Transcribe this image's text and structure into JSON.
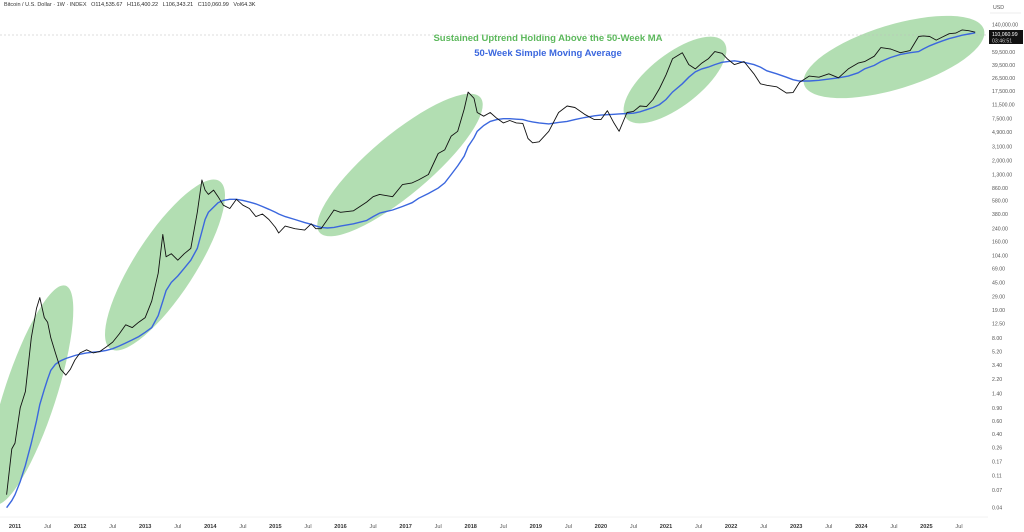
{
  "header": {
    "symbol": "Bitcoin / U.S. Dollar · 1W · INDEX",
    "open_label": "O",
    "open": "114,535.67",
    "high_label": "H",
    "high": "116,400.22",
    "low_label": "L",
    "low": "106,343.21",
    "close_label": "C",
    "close": "110,060.99",
    "vol_label": "Vol",
    "vol": "64.3K"
  },
  "currency": "USD",
  "price_badge": {
    "price": "110,060.99",
    "timer": "03:46:51"
  },
  "chart_data": {
    "type": "line",
    "scale": "log",
    "title": "",
    "annotations": [
      {
        "text": "Sustained Uptrend Holding Above the 50-Week MA",
        "color": "#5cb85c"
      },
      {
        "text": "50-Week Simple Moving Average",
        "color": "#3b67de"
      }
    ],
    "y_ticks": [
      "140,000.00",
      "90,000.00",
      "59,500.00",
      "39,500.00",
      "26,500.00",
      "17,500.00",
      "11,500.00",
      "7,500.00",
      "4,900.00",
      "3,100.00",
      "2,000.00",
      "1,300.00",
      "860.00",
      "580.00",
      "380.00",
      "240.00",
      "160.00",
      "104.00",
      "69.00",
      "45.00",
      "29.00",
      "19.00",
      "12.50",
      "8.00",
      "5.20",
      "3.40",
      "2.20",
      "1.40",
      "0.90",
      "0.60",
      "0.40",
      "0.26",
      "0.17",
      "0.11",
      "0.07",
      "0.04"
    ],
    "x_ticks": [
      "2011",
      "Jul",
      "2012",
      "Jul",
      "2013",
      "Jul",
      "2014",
      "Jul",
      "2015",
      "Jul",
      "2016",
      "Jul",
      "2017",
      "Jul",
      "2018",
      "Jul",
      "2019",
      "Jul",
      "2020",
      "Jul",
      "2021",
      "Jul",
      "2022",
      "Jul",
      "2023",
      "Jul",
      "2024",
      "Jul",
      "2025",
      "Jul"
    ],
    "x_range": [
      2010.8,
      2025.9
    ],
    "y_range": [
      0.035,
      200000
    ],
    "series": [
      {
        "name": "Bitcoin / U.S. Dollar",
        "color": "#111111",
        "x": [
          2010.87,
          2010.95,
          2011.0,
          2011.08,
          2011.16,
          2011.25,
          2011.33,
          2011.38,
          2011.45,
          2011.5,
          2011.55,
          2011.62,
          2011.7,
          2011.78,
          2011.85,
          2011.92,
          2012.0,
          2012.1,
          2012.2,
          2012.3,
          2012.4,
          2012.5,
          2012.6,
          2012.7,
          2012.8,
          2012.9,
          2013.0,
          2013.1,
          2013.2,
          2013.27,
          2013.32,
          2013.4,
          2013.5,
          2013.6,
          2013.7,
          2013.8,
          2013.87,
          2013.92,
          2013.97,
          2014.05,
          2014.12,
          2014.2,
          2014.3,
          2014.4,
          2014.5,
          2014.6,
          2014.7,
          2014.8,
          2014.9,
          2015.0,
          2015.05,
          2015.15,
          2015.3,
          2015.45,
          2015.55,
          2015.62,
          2015.7,
          2015.8,
          2015.9,
          2016.0,
          2016.2,
          2016.4,
          2016.5,
          2016.6,
          2016.8,
          2016.95,
          2017.1,
          2017.2,
          2017.35,
          2017.5,
          2017.6,
          2017.7,
          2017.8,
          2017.9,
          2017.96,
          2018.05,
          2018.1,
          2018.2,
          2018.3,
          2018.4,
          2018.5,
          2018.6,
          2018.7,
          2018.8,
          2018.88,
          2018.95,
          2019.05,
          2019.2,
          2019.35,
          2019.48,
          2019.6,
          2019.75,
          2019.9,
          2020.0,
          2020.1,
          2020.2,
          2020.28,
          2020.4,
          2020.5,
          2020.6,
          2020.7,
          2020.8,
          2020.9,
          2021.0,
          2021.1,
          2021.25,
          2021.35,
          2021.45,
          2021.55,
          2021.65,
          2021.75,
          2021.86,
          2021.95,
          2022.05,
          2022.2,
          2022.35,
          2022.45,
          2022.55,
          2022.7,
          2022.85,
          2022.95,
          2023.05,
          2023.2,
          2023.35,
          2023.5,
          2023.65,
          2023.8,
          2023.95,
          2024.05,
          2024.2,
          2024.3,
          2024.45,
          2024.6,
          2024.75,
          2024.88,
          2024.95,
          2025.05,
          2025.15,
          2025.25,
          2025.35,
          2025.45,
          2025.55,
          2025.65,
          2025.75
        ],
        "y": [
          0.06,
          0.25,
          0.3,
          0.9,
          1.5,
          8,
          20,
          28,
          15,
          13,
          8,
          5,
          3,
          2.5,
          3,
          4,
          5,
          5.5,
          5,
          5.2,
          6,
          7,
          9,
          12,
          11,
          13,
          15,
          25,
          60,
          200,
          100,
          110,
          90,
          110,
          130,
          400,
          1100,
          800,
          700,
          800,
          650,
          500,
          450,
          600,
          500,
          450,
          350,
          380,
          320,
          250,
          210,
          260,
          240,
          230,
          280,
          240,
          240,
          320,
          430,
          400,
          420,
          550,
          650,
          700,
          650,
          950,
          1000,
          1100,
          1300,
          2500,
          2800,
          4300,
          5000,
          10000,
          17000,
          14000,
          9000,
          8000,
          9000,
          7500,
          6500,
          7000,
          6500,
          6400,
          4000,
          3500,
          3600,
          5000,
          9000,
          11000,
          10500,
          8500,
          7200,
          7200,
          9500,
          6500,
          5000,
          9000,
          9300,
          11000,
          10800,
          13500,
          19000,
          29000,
          48000,
          58000,
          40000,
          35000,
          42000,
          48000,
          60000,
          57000,
          47000,
          40000,
          44000,
          30000,
          22000,
          21000,
          20000,
          16500,
          16700,
          23000,
          28000,
          27000,
          30000,
          26500,
          35000,
          42000,
          44000,
          52000,
          68000,
          65000,
          58000,
          62000,
          96000,
          98000,
          96000,
          86000,
          95000,
          105000,
          107000,
          118000,
          115000,
          110000
        ],
        "ma50": [
          0.04,
          0.05,
          0.06,
          0.09,
          0.15,
          0.3,
          0.6,
          1.0,
          1.6,
          2.2,
          2.9,
          3.5,
          3.9,
          4.2,
          4.4,
          4.6,
          4.8,
          5.0,
          5.1,
          5.2,
          5.4,
          5.7,
          6.2,
          6.8,
          7.5,
          8.3,
          9.5,
          11,
          16,
          25,
          35,
          45,
          55,
          70,
          90,
          130,
          220,
          320,
          400,
          470,
          540,
          580,
          600,
          600,
          580,
          550,
          520,
          480,
          440,
          400,
          380,
          350,
          320,
          290,
          275,
          262,
          250,
          245,
          250,
          260,
          280,
          310,
          350,
          390,
          430,
          480,
          540,
          620,
          720,
          850,
          1000,
          1300,
          1700,
          2300,
          3100,
          4100,
          5000,
          6000,
          6800,
          7200,
          7400,
          7400,
          7300,
          7200,
          6900,
          6700,
          6500,
          6300,
          6600,
          6800,
          7200,
          7700,
          8100,
          8300,
          8400,
          8500,
          8600,
          8700,
          8800,
          9200,
          9800,
          10500,
          11500,
          13500,
          17000,
          22000,
          27000,
          32000,
          35000,
          37000,
          40000,
          43000,
          44000,
          45000,
          43000,
          40000,
          37000,
          33000,
          30000,
          27000,
          25000,
          24000,
          24000,
          24500,
          25500,
          26500,
          28000,
          31000,
          35000,
          39000,
          44000,
          50000,
          55000,
          58000,
          60000,
          65000,
          72000,
          78000,
          84000,
          90000,
          95000,
          100000,
          104000,
          108000
        ]
      }
    ]
  }
}
